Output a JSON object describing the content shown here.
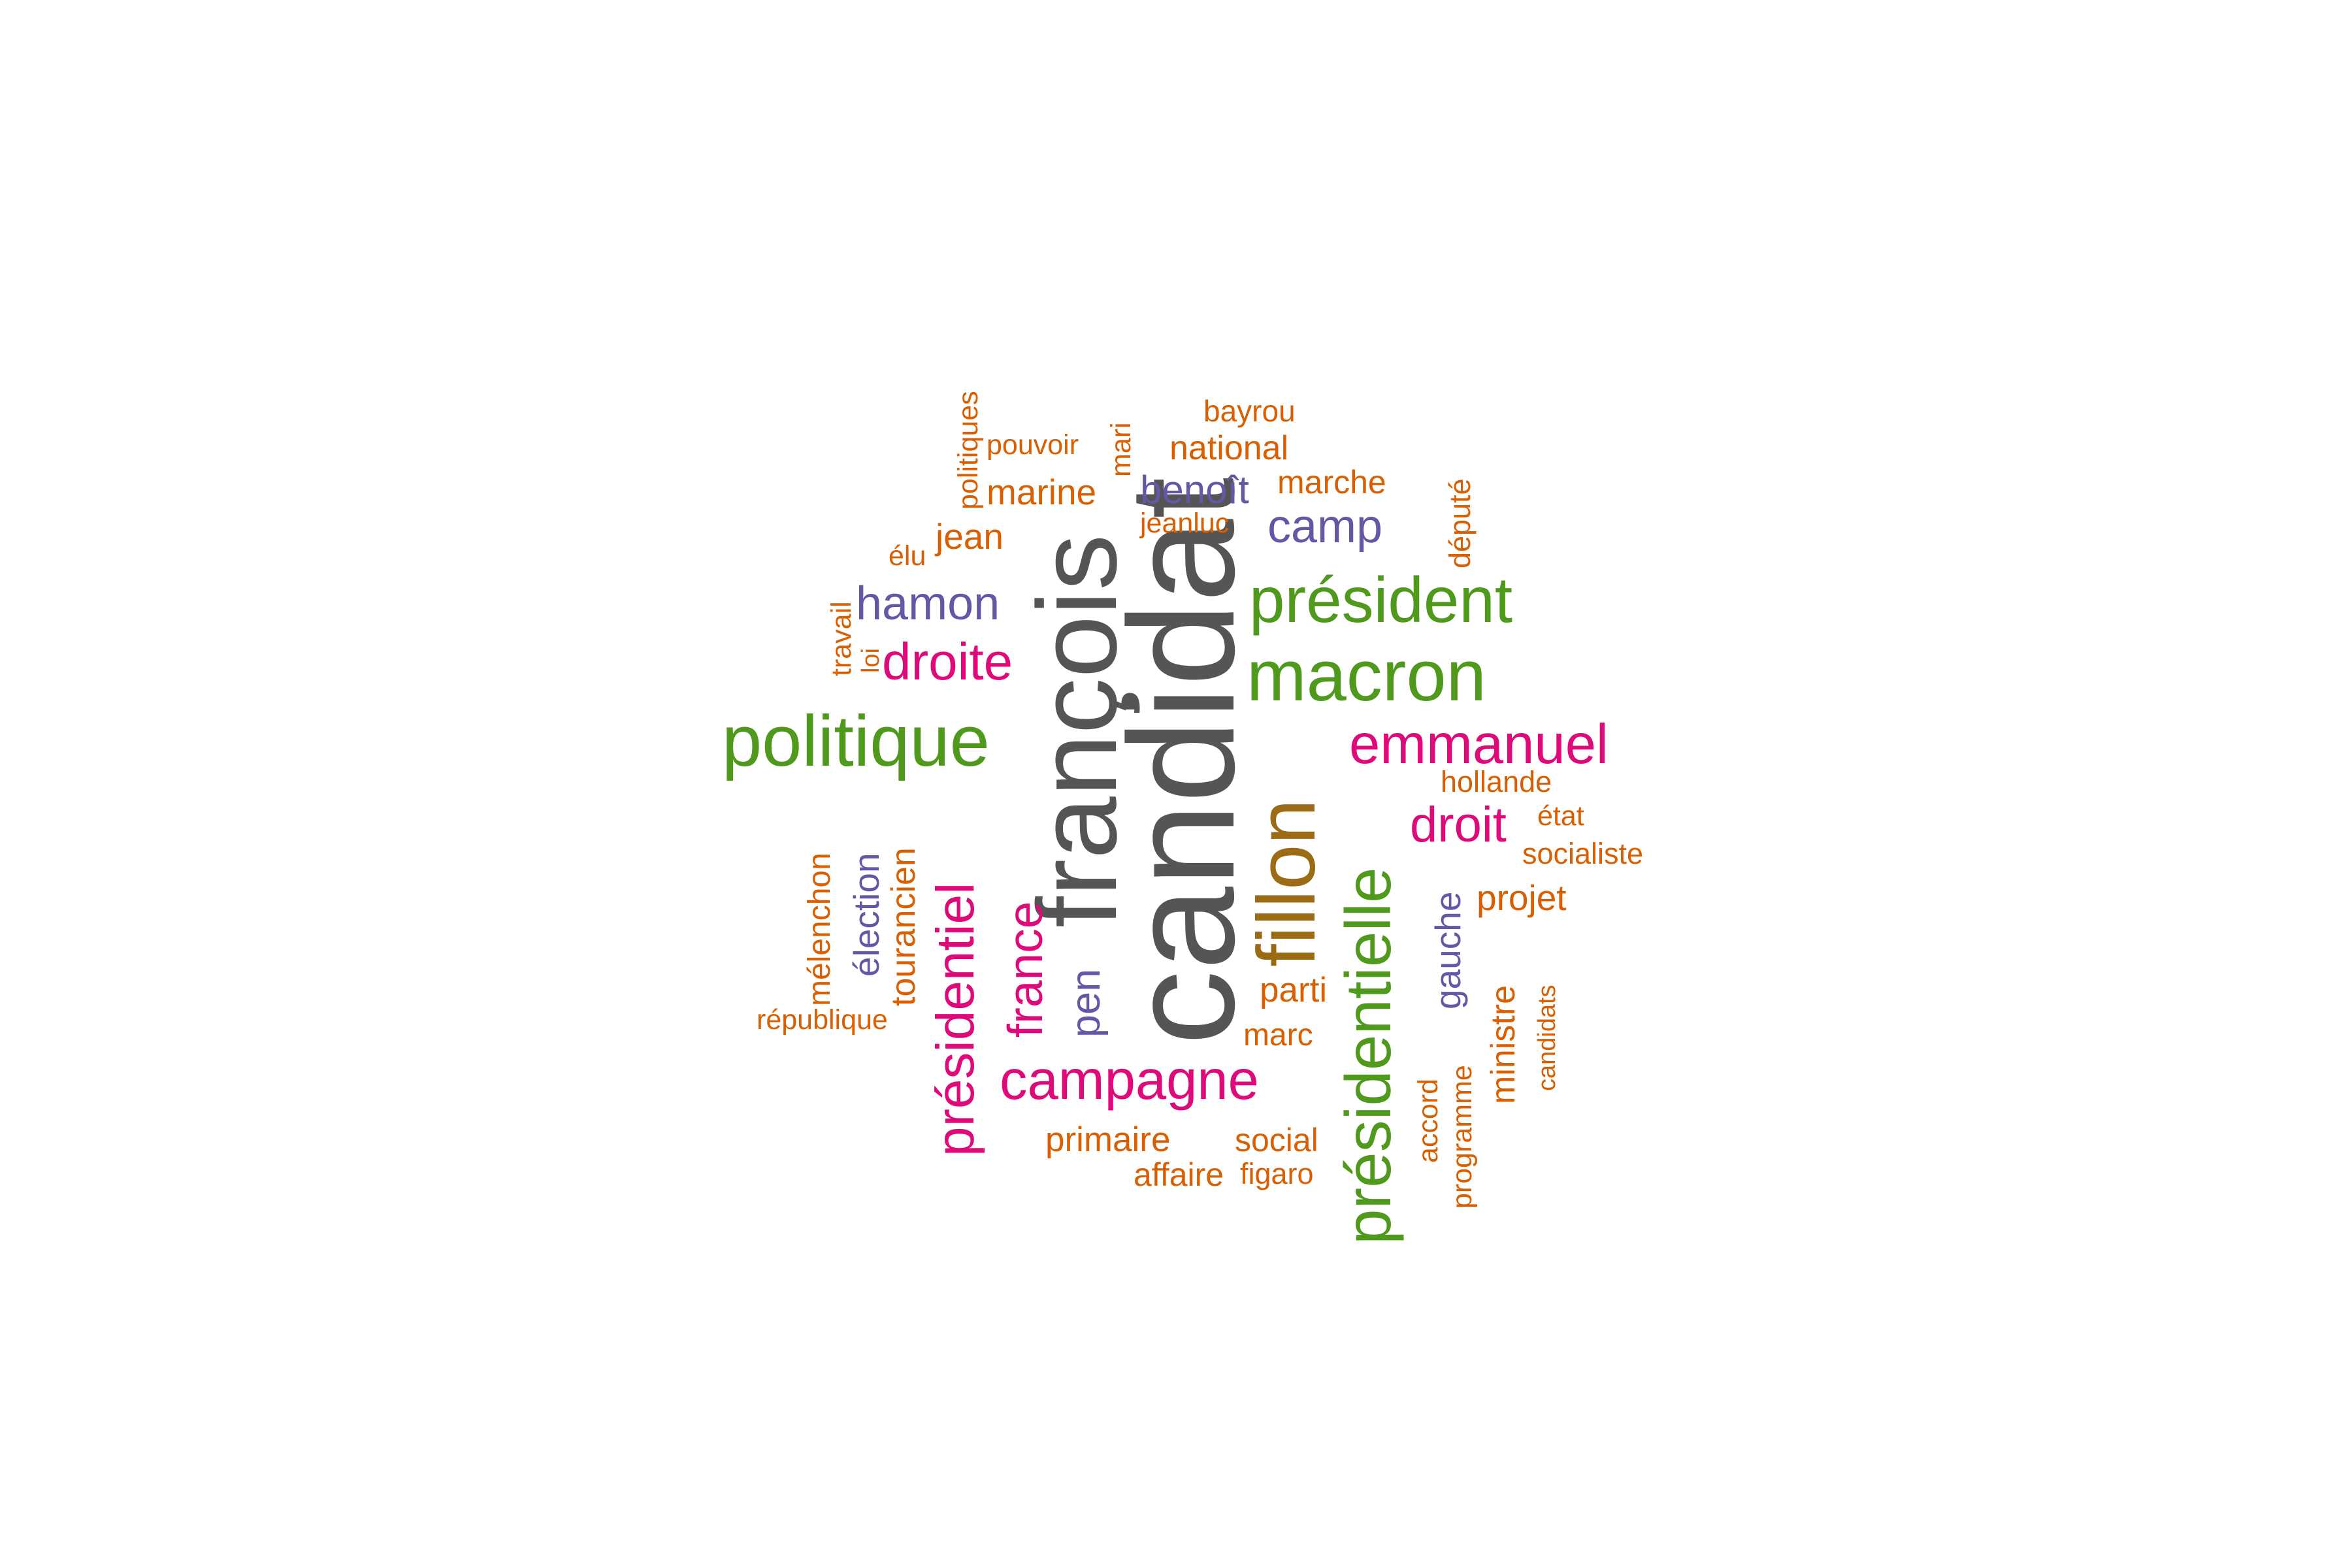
{
  "word_cloud": {
    "colors": {
      "dark_gray": "#555555",
      "green": "#4f9a1c",
      "magenta": "#df0a7a",
      "purple": "#6457a6",
      "orange": "#d95f02",
      "brown": "#9c6b15"
    },
    "words": [
      {
        "id": "candidat",
        "text": "candidat",
        "color": "dark_gray",
        "vertical": true
      },
      {
        "id": "francois",
        "text": "françois",
        "color": "dark_gray",
        "vertical": true
      },
      {
        "id": "fillon",
        "text": "fillon",
        "color": "brown",
        "vertical": true
      },
      {
        "id": "politique",
        "text": "politique",
        "color": "green",
        "vertical": false
      },
      {
        "id": "macron",
        "text": "macron",
        "color": "green",
        "vertical": false
      },
      {
        "id": "president",
        "text": "président",
        "color": "green",
        "vertical": false
      },
      {
        "id": "presidentielle",
        "text": "présidentielle",
        "color": "green",
        "vertical": true
      },
      {
        "id": "emmanuel",
        "text": "emmanuel",
        "color": "magenta",
        "vertical": false
      },
      {
        "id": "presidentiel",
        "text": "présidentiel",
        "color": "magenta",
        "vertical": true
      },
      {
        "id": "campagne",
        "text": "campagne",
        "color": "magenta",
        "vertical": false
      },
      {
        "id": "droite",
        "text": "droite",
        "color": "magenta",
        "vertical": false
      },
      {
        "id": "droit",
        "text": "droit",
        "color": "magenta",
        "vertical": false
      },
      {
        "id": "france",
        "text": "france",
        "color": "magenta",
        "vertical": true
      },
      {
        "id": "hamon",
        "text": "hamon",
        "color": "purple",
        "vertical": false
      },
      {
        "id": "camp",
        "text": "camp",
        "color": "purple",
        "vertical": false
      },
      {
        "id": "benoit",
        "text": "benoît",
        "color": "purple",
        "vertical": false
      },
      {
        "id": "pen",
        "text": "pen",
        "color": "purple",
        "vertical": true
      },
      {
        "id": "election",
        "text": "élection",
        "color": "purple",
        "vertical": true
      },
      {
        "id": "gauche",
        "text": "gauche",
        "color": "purple",
        "vertical": true
      },
      {
        "id": "bayrou",
        "text": "bayrou",
        "color": "orange",
        "vertical": false
      },
      {
        "id": "national",
        "text": "national",
        "color": "orange",
        "vertical": false
      },
      {
        "id": "pouvoir",
        "text": "pouvoir",
        "color": "orange",
        "vertical": false
      },
      {
        "id": "marine",
        "text": "marine",
        "color": "orange",
        "vertical": false
      },
      {
        "id": "marche",
        "text": "marche",
        "color": "orange",
        "vertical": false
      },
      {
        "id": "jeanluc",
        "text": "jeanluc",
        "color": "orange",
        "vertical": false
      },
      {
        "id": "jean",
        "text": "jean",
        "color": "orange",
        "vertical": false
      },
      {
        "id": "elu",
        "text": "élu",
        "color": "orange",
        "vertical": false
      },
      {
        "id": "politiques",
        "text": "politiques",
        "color": "orange",
        "vertical": true
      },
      {
        "id": "mari",
        "text": "mari",
        "color": "orange",
        "vertical": true
      },
      {
        "id": "depute",
        "text": "député",
        "color": "orange",
        "vertical": true
      },
      {
        "id": "travail",
        "text": "travail",
        "color": "orange",
        "vertical": true
      },
      {
        "id": "loi",
        "text": "loi",
        "color": "orange",
        "vertical": true
      },
      {
        "id": "hollande",
        "text": "hollande",
        "color": "orange",
        "vertical": false
      },
      {
        "id": "etat",
        "text": "état",
        "color": "orange",
        "vertical": false
      },
      {
        "id": "socialiste",
        "text": "socialiste",
        "color": "orange",
        "vertical": false
      },
      {
        "id": "projet",
        "text": "projet",
        "color": "orange",
        "vertical": false
      },
      {
        "id": "melenchon",
        "text": "mélenchon",
        "color": "orange",
        "vertical": true
      },
      {
        "id": "tourancien",
        "text": "tourancien",
        "color": "orange",
        "vertical": true
      },
      {
        "id": "republique",
        "text": "république",
        "color": "orange",
        "vertical": false
      },
      {
        "id": "parti",
        "text": "parti",
        "color": "orange",
        "vertical": false
      },
      {
        "id": "marc",
        "text": "marc",
        "color": "orange",
        "vertical": false
      },
      {
        "id": "primaire",
        "text": "primaire",
        "color": "orange",
        "vertical": false
      },
      {
        "id": "social",
        "text": "social",
        "color": "orange",
        "vertical": false
      },
      {
        "id": "affaire",
        "text": "affaire",
        "color": "orange",
        "vertical": false
      },
      {
        "id": "figaro",
        "text": "figaro",
        "color": "orange",
        "vertical": false
      },
      {
        "id": "ministre",
        "text": "ministre",
        "color": "orange",
        "vertical": true
      },
      {
        "id": "candidats",
        "text": "candidats",
        "color": "orange",
        "vertical": true
      },
      {
        "id": "accord",
        "text": "accord",
        "color": "orange",
        "vertical": true
      },
      {
        "id": "programme",
        "text": "programme",
        "color": "orange",
        "vertical": true
      }
    ]
  }
}
